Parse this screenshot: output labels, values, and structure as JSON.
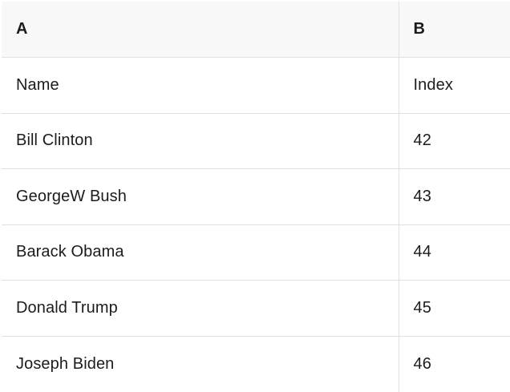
{
  "table": {
    "column_headers": [
      "A",
      "B"
    ],
    "rows": [
      [
        "Name",
        "Index"
      ],
      [
        "Bill Clinton",
        "42"
      ],
      [
        "GeorgeW Bush",
        "43"
      ],
      [
        "Barack Obama",
        "44"
      ],
      [
        "Donald Trump",
        "45"
      ],
      [
        "Joseph Biden",
        "46"
      ]
    ]
  },
  "colors": {
    "background": "#ffffff",
    "header_bg": "#f8f8f8",
    "border": "#e0e0e0",
    "text": "#1c1c1c"
  }
}
